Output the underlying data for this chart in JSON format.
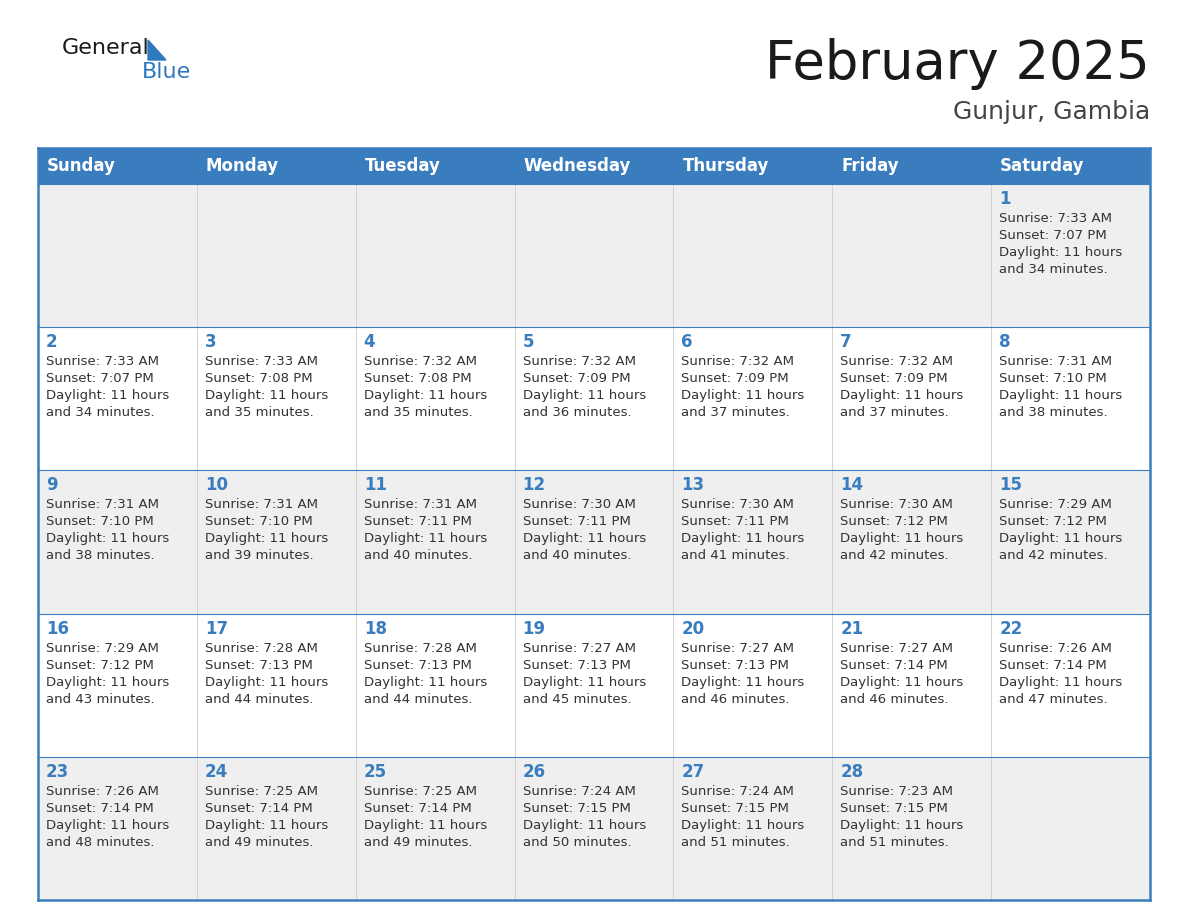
{
  "title": "February 2025",
  "subtitle": "Gunjur, Gambia",
  "days_of_week": [
    "Sunday",
    "Monday",
    "Tuesday",
    "Wednesday",
    "Thursday",
    "Friday",
    "Saturday"
  ],
  "header_bg": "#3a7dbf",
  "header_text_color": "#ffffff",
  "cell_bg_odd": "#efefef",
  "cell_bg_even": "#ffffff",
  "border_color": "#3a7dbf",
  "title_color": "#1a1a1a",
  "subtitle_color": "#444444",
  "day_num_color": "#3a7dbf",
  "cell_text_color": "#333333",
  "logo_general_color": "#1a1a1a",
  "logo_blue_color": "#2e7abf",
  "calendar": [
    [
      null,
      null,
      null,
      null,
      null,
      null,
      {
        "day": 1,
        "rise": "7:33 AM",
        "set": "7:07 PM",
        "light": "11 hours and 34 minutes"
      }
    ],
    [
      {
        "day": 2,
        "rise": "7:33 AM",
        "set": "7:07 PM",
        "light": "11 hours and 34 minutes"
      },
      {
        "day": 3,
        "rise": "7:33 AM",
        "set": "7:08 PM",
        "light": "11 hours and 35 minutes"
      },
      {
        "day": 4,
        "rise": "7:32 AM",
        "set": "7:08 PM",
        "light": "11 hours and 35 minutes"
      },
      {
        "day": 5,
        "rise": "7:32 AM",
        "set": "7:09 PM",
        "light": "11 hours and 36 minutes"
      },
      {
        "day": 6,
        "rise": "7:32 AM",
        "set": "7:09 PM",
        "light": "11 hours and 37 minutes"
      },
      {
        "day": 7,
        "rise": "7:32 AM",
        "set": "7:09 PM",
        "light": "11 hours and 37 minutes"
      },
      {
        "day": 8,
        "rise": "7:31 AM",
        "set": "7:10 PM",
        "light": "11 hours and 38 minutes"
      }
    ],
    [
      {
        "day": 9,
        "rise": "7:31 AM",
        "set": "7:10 PM",
        "light": "11 hours and 38 minutes"
      },
      {
        "day": 10,
        "rise": "7:31 AM",
        "set": "7:10 PM",
        "light": "11 hours and 39 minutes"
      },
      {
        "day": 11,
        "rise": "7:31 AM",
        "set": "7:11 PM",
        "light": "11 hours and 40 minutes"
      },
      {
        "day": 12,
        "rise": "7:30 AM",
        "set": "7:11 PM",
        "light": "11 hours and 40 minutes"
      },
      {
        "day": 13,
        "rise": "7:30 AM",
        "set": "7:11 PM",
        "light": "11 hours and 41 minutes"
      },
      {
        "day": 14,
        "rise": "7:30 AM",
        "set": "7:12 PM",
        "light": "11 hours and 42 minutes"
      },
      {
        "day": 15,
        "rise": "7:29 AM",
        "set": "7:12 PM",
        "light": "11 hours and 42 minutes"
      }
    ],
    [
      {
        "day": 16,
        "rise": "7:29 AM",
        "set": "7:12 PM",
        "light": "11 hours and 43 minutes"
      },
      {
        "day": 17,
        "rise": "7:28 AM",
        "set": "7:13 PM",
        "light": "11 hours and 44 minutes"
      },
      {
        "day": 18,
        "rise": "7:28 AM",
        "set": "7:13 PM",
        "light": "11 hours and 44 minutes"
      },
      {
        "day": 19,
        "rise": "7:27 AM",
        "set": "7:13 PM",
        "light": "11 hours and 45 minutes"
      },
      {
        "day": 20,
        "rise": "7:27 AM",
        "set": "7:13 PM",
        "light": "11 hours and 46 minutes"
      },
      {
        "day": 21,
        "rise": "7:27 AM",
        "set": "7:14 PM",
        "light": "11 hours and 46 minutes"
      },
      {
        "day": 22,
        "rise": "7:26 AM",
        "set": "7:14 PM",
        "light": "11 hours and 47 minutes"
      }
    ],
    [
      {
        "day": 23,
        "rise": "7:26 AM",
        "set": "7:14 PM",
        "light": "11 hours and 48 minutes"
      },
      {
        "day": 24,
        "rise": "7:25 AM",
        "set": "7:14 PM",
        "light": "11 hours and 49 minutes"
      },
      {
        "day": 25,
        "rise": "7:25 AM",
        "set": "7:14 PM",
        "light": "11 hours and 49 minutes"
      },
      {
        "day": 26,
        "rise": "7:24 AM",
        "set": "7:15 PM",
        "light": "11 hours and 50 minutes"
      },
      {
        "day": 27,
        "rise": "7:24 AM",
        "set": "7:15 PM",
        "light": "11 hours and 51 minutes"
      },
      {
        "day": 28,
        "rise": "7:23 AM",
        "set": "7:15 PM",
        "light": "11 hours and 51 minutes"
      },
      null
    ]
  ]
}
